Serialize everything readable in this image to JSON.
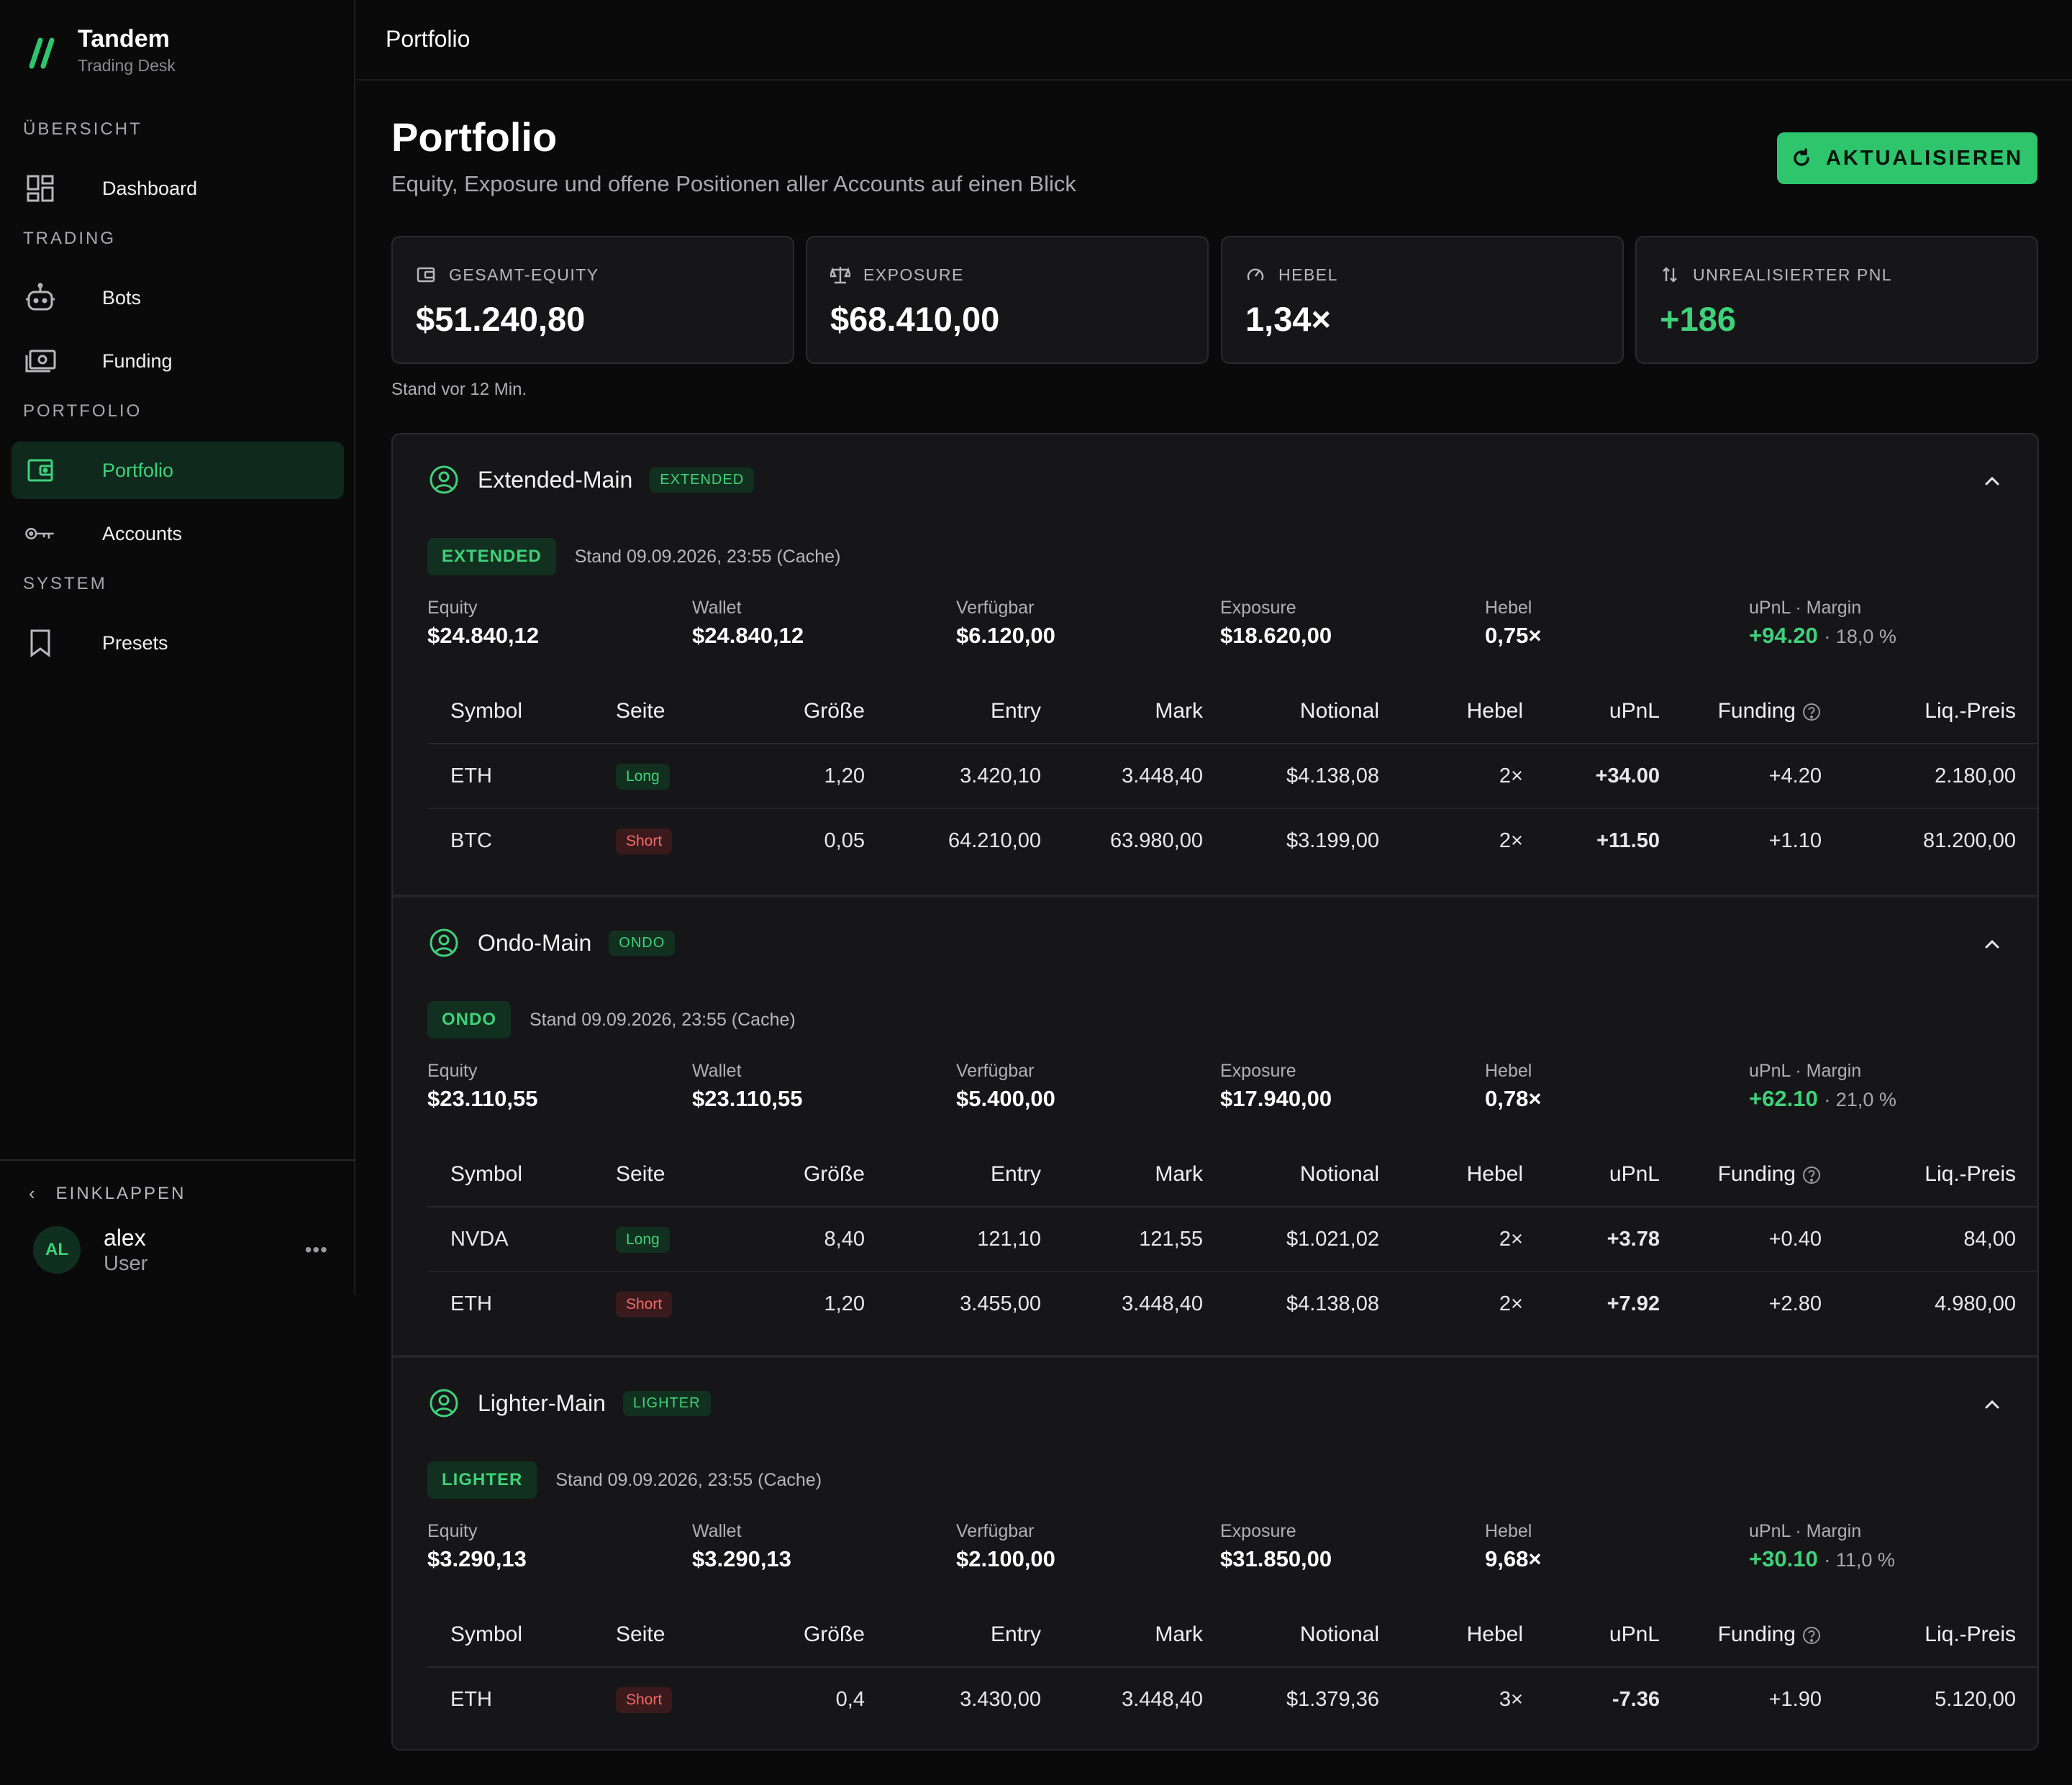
{
  "brand": {
    "name": "Tandem",
    "subtitle": "Trading Desk"
  },
  "sidebar": {
    "sections": [
      {
        "title": "ÜBERSICHT",
        "items": [
          {
            "label": "Dashboard",
            "icon": "dashboard-icon"
          }
        ]
      },
      {
        "title": "TRADING",
        "items": [
          {
            "label": "Bots",
            "icon": "bot-icon"
          },
          {
            "label": "Funding",
            "icon": "money-icon"
          }
        ]
      },
      {
        "title": "PORTFOLIO",
        "items": [
          {
            "label": "Portfolio",
            "icon": "wallet-icon",
            "active": true
          },
          {
            "label": "Accounts",
            "icon": "key-icon"
          }
        ]
      },
      {
        "title": "SYSTEM",
        "items": [
          {
            "label": "Presets",
            "icon": "bookmark-icon"
          }
        ]
      }
    ],
    "collapse_label": "EINKLAPPEN",
    "user": {
      "initials": "AL",
      "name": "alex",
      "role": "User",
      "more": "•••"
    }
  },
  "topbar": {
    "title": "Portfolio"
  },
  "header": {
    "title": "Portfolio",
    "subtitle": "Equity, Exposure und offene Positionen aller Accounts auf einen Blick",
    "refresh_label": "AKTUALISIEREN"
  },
  "kpis": [
    {
      "label": "GESAMT-EQUITY",
      "value": "$51.240,80",
      "icon": "wallet-icon"
    },
    {
      "label": "EXPOSURE",
      "value": "$68.410,00",
      "icon": "scale-icon"
    },
    {
      "label": "HEBEL",
      "value": "1,34×",
      "icon": "gauge-icon"
    },
    {
      "label": "UNREALISIERTER PNL",
      "value": "+186",
      "icon": "updown-icon",
      "positive": true
    }
  ],
  "stand_note": "Stand vor 12 Min.",
  "metric_labels": {
    "equity": "Equity",
    "wallet": "Wallet",
    "available": "Verfügbar",
    "exposure": "Exposure",
    "leverage": "Hebel",
    "upnl_margin": "uPnL · Margin"
  },
  "table_headers": {
    "symbol": "Symbol",
    "side": "Seite",
    "size": "Größe",
    "entry": "Entry",
    "mark": "Mark",
    "notional": "Notional",
    "leverage": "Hebel",
    "upnl": "uPnL",
    "funding": "Funding",
    "liq": "Liq.-Preis"
  },
  "accounts": [
    {
      "name": "Extended-Main",
      "tag": "EXTENDED",
      "exchange": "EXTENDED",
      "stand": "Stand 09.09.2026, 23:55 (Cache)",
      "equity": "$24.840,12",
      "wallet": "$24.840,12",
      "available": "$6.120,00",
      "exposure": "$18.620,00",
      "leverage": "0,75×",
      "upnl": "+94.20",
      "margin": "· 18,0 %",
      "positions": [
        {
          "symbol": "ETH",
          "side": "Long",
          "size": "1,20",
          "entry": "3.420,10",
          "mark": "3.448,40",
          "notional": "$4.138,08",
          "leverage": "2×",
          "upnl": "+34.00",
          "funding": "+4.20",
          "liq": "2.180,00"
        },
        {
          "symbol": "BTC",
          "side": "Short",
          "size": "0,05",
          "entry": "64.210,00",
          "mark": "63.980,00",
          "notional": "$3.199,00",
          "leverage": "2×",
          "upnl": "+11.50",
          "funding": "+1.10",
          "liq": "81.200,00"
        }
      ]
    },
    {
      "name": "Ondo-Main",
      "tag": "ONDO",
      "exchange": "ONDO",
      "stand": "Stand 09.09.2026, 23:55 (Cache)",
      "equity": "$23.110,55",
      "wallet": "$23.110,55",
      "available": "$5.400,00",
      "exposure": "$17.940,00",
      "leverage": "0,78×",
      "upnl": "+62.10",
      "margin": "· 21,0 %",
      "positions": [
        {
          "symbol": "NVDA",
          "side": "Long",
          "size": "8,40",
          "entry": "121,10",
          "mark": "121,55",
          "notional": "$1.021,02",
          "leverage": "2×",
          "upnl": "+3.78",
          "funding": "+0.40",
          "liq": "84,00"
        },
        {
          "symbol": "ETH",
          "side": "Short",
          "size": "1,20",
          "entry": "3.455,00",
          "mark": "3.448,40",
          "notional": "$4.138,08",
          "leverage": "2×",
          "upnl": "+7.92",
          "funding": "+2.80",
          "liq": "4.980,00"
        }
      ]
    },
    {
      "name": "Lighter-Main",
      "tag": "LIGHTER",
      "exchange": "LIGHTER",
      "stand": "Stand 09.09.2026, 23:55 (Cache)",
      "equity": "$3.290,13",
      "wallet": "$3.290,13",
      "available": "$2.100,00",
      "exposure": "$31.850,00",
      "leverage": "9,68×",
      "upnl": "+30.10",
      "margin": "· 11,0 %",
      "positions": [
        {
          "symbol": "ETH",
          "side": "Short",
          "size": "0,4",
          "entry": "3.430,00",
          "mark": "3.448,40",
          "notional": "$1.379,36",
          "leverage": "3×",
          "upnl": "-7.36",
          "funding": "+1.90",
          "liq": "5.120,00"
        }
      ]
    }
  ],
  "colors": {
    "accent": "#2ec56d",
    "positive": "#3fd17a",
    "negative": "#f06a6a",
    "background": "#0a0a0b",
    "card": "#161618"
  }
}
